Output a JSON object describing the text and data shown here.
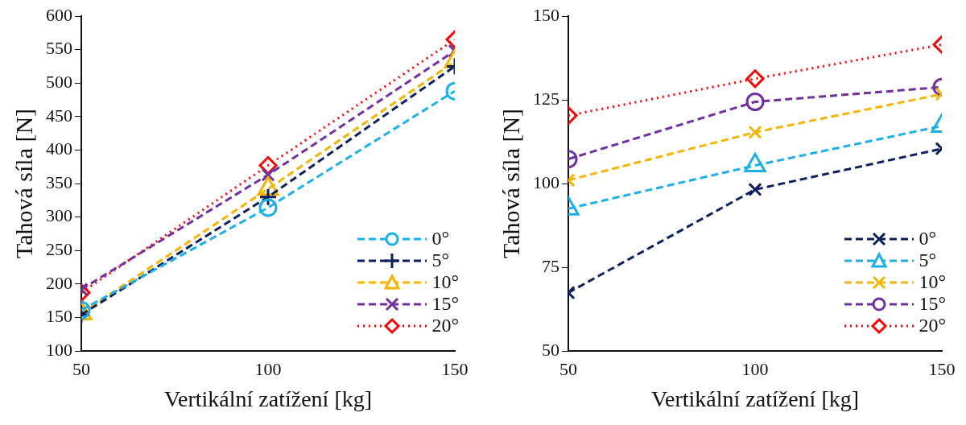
{
  "chart_data": [
    {
      "type": "line",
      "xlabel": "Vertikální zatížení [kg]",
      "ylabel": "Tahová síla [N]",
      "x": [
        50,
        100,
        150
      ],
      "xlim": [
        50,
        150
      ],
      "xticks": [
        50,
        100,
        150
      ],
      "ylim": [
        100,
        600
      ],
      "yticks": [
        100,
        150,
        200,
        250,
        300,
        350,
        400,
        450,
        500,
        550,
        600
      ],
      "grid": false,
      "legend": "bottom right",
      "series": [
        {
          "name": "0°",
          "color": "#1cb0e8",
          "values": [
            161,
            314,
            488
          ],
          "marker": "circle",
          "line_style": "dashed"
        },
        {
          "name": "5°",
          "color": "#0d1f5c",
          "values": [
            154,
            330,
            525
          ],
          "marker": "plus",
          "line_style": "dashed"
        },
        {
          "name": "10°",
          "color": "#f5b400",
          "values": [
            156,
            342,
            532
          ],
          "marker": "triangle",
          "line_style": "dashed"
        },
        {
          "name": "15°",
          "color": "#7030a0",
          "values": [
            192,
            363,
            548
          ],
          "marker": "cross",
          "line_style": "dashed"
        },
        {
          "name": "20°",
          "color": "#ff0000",
          "values": [
            187,
            377,
            565
          ],
          "marker": "diamond",
          "line_style": "dotted"
        }
      ]
    },
    {
      "type": "line",
      "xlabel": "Vertikální zatížení [kg]",
      "ylabel": "Tahová síla [N]",
      "x": [
        50,
        100,
        150
      ],
      "xlim": [
        50,
        150
      ],
      "xticks": [
        50,
        100,
        150
      ],
      "ylim": [
        50,
        150
      ],
      "yticks": [
        50,
        75,
        100,
        125,
        150
      ],
      "grid": false,
      "legend": "bottom right",
      "series": [
        {
          "name": "0°",
          "color": "#0d1f5c",
          "values": [
            67.4,
            98.2,
            110.4
          ],
          "marker": "cross",
          "line_style": "dashed"
        },
        {
          "name": "5°",
          "color": "#1cb0e8",
          "values": [
            92.5,
            105.4,
            117.2
          ],
          "marker": "triangle",
          "line_style": "dashed"
        },
        {
          "name": "10°",
          "color": "#f5b400",
          "values": [
            101,
            115.3,
            126.7
          ],
          "marker": "cross",
          "line_style": "dashed"
        },
        {
          "name": "15°",
          "color": "#7030a0",
          "values": [
            107.3,
            124.4,
            128.8
          ],
          "marker": "circle",
          "line_style": "dashed"
        },
        {
          "name": "20°",
          "color": "#ff0000",
          "values": [
            120.3,
            131.3,
            141.5
          ],
          "marker": "diamond",
          "line_style": "dotted"
        }
      ]
    }
  ]
}
